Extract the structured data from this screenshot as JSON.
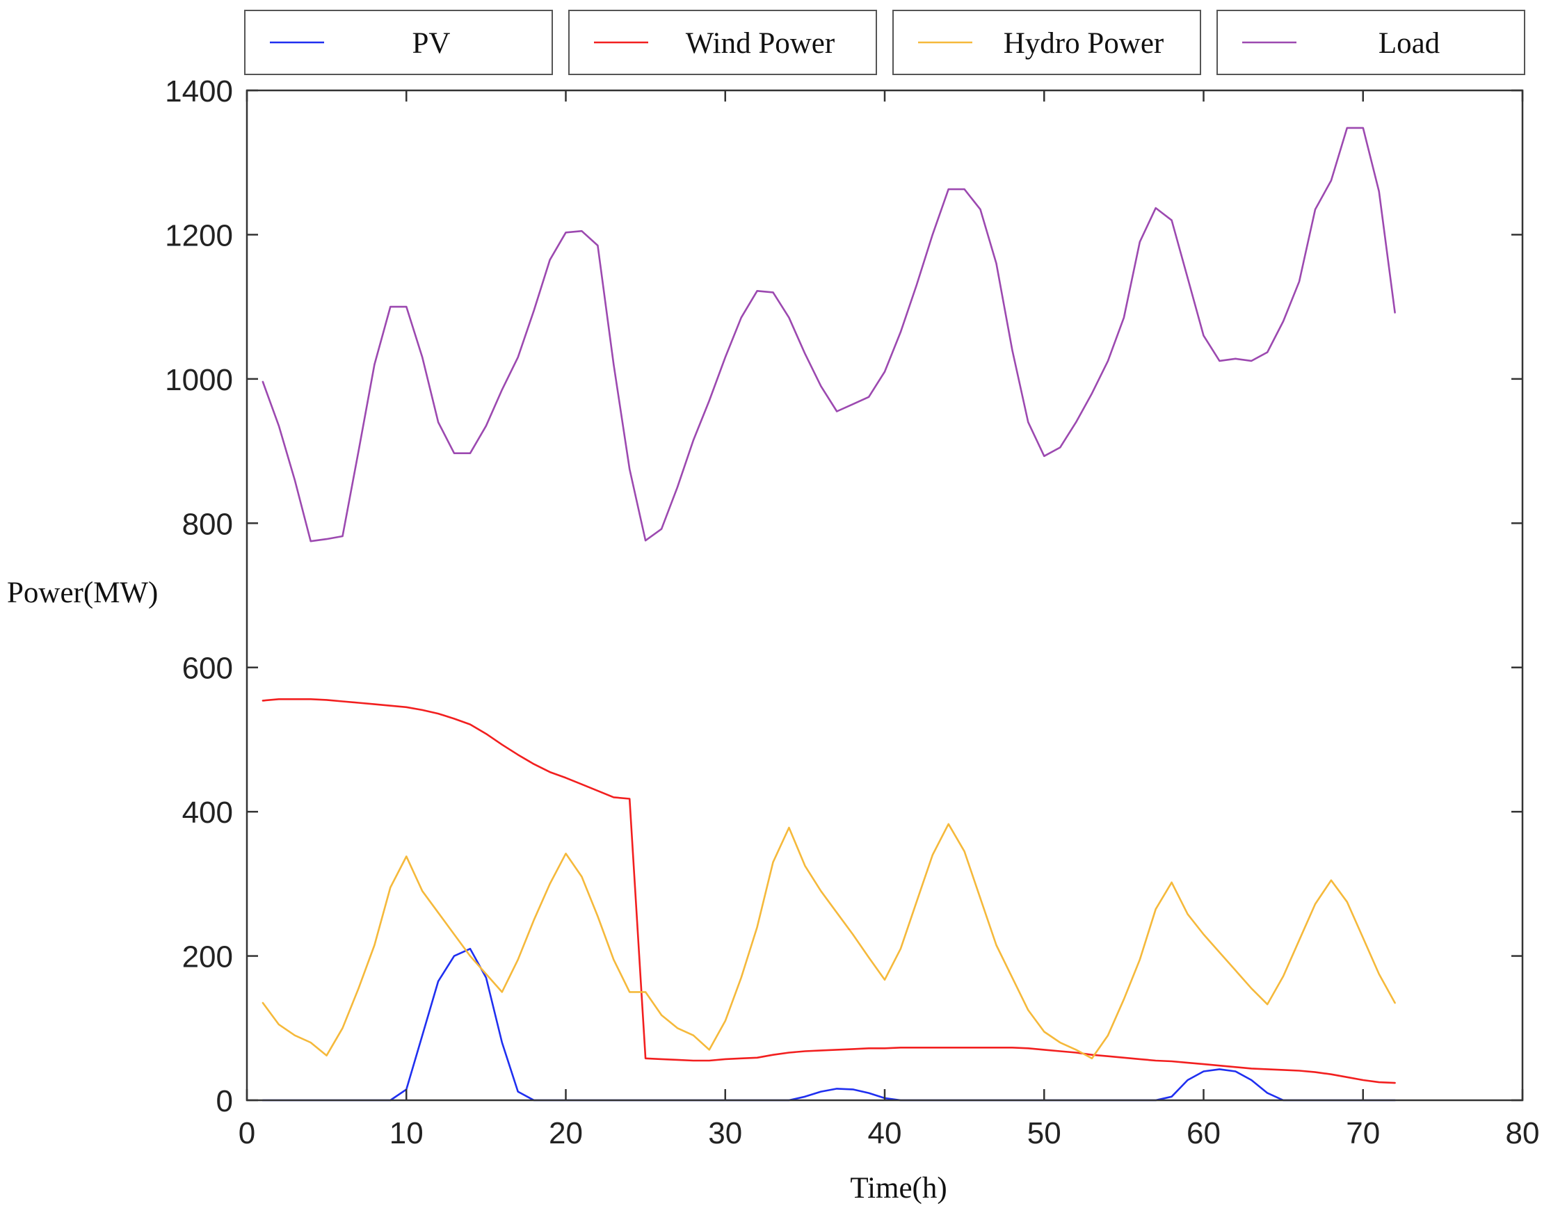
{
  "chart_data": {
    "type": "line",
    "xlabel": "Time(h)",
    "ylabel": "Power(MW)",
    "xlim": [
      0,
      80
    ],
    "ylim": [
      0,
      1400
    ],
    "xticks": [
      0,
      10,
      20,
      30,
      40,
      50,
      60,
      70,
      80
    ],
    "yticks": [
      0,
      200,
      400,
      600,
      800,
      1000,
      1200,
      1400
    ],
    "legend_position": "top",
    "grid": false,
    "x": [
      1,
      2,
      3,
      4,
      5,
      6,
      7,
      8,
      9,
      10,
      11,
      12,
      13,
      14,
      15,
      16,
      17,
      18,
      19,
      20,
      21,
      22,
      23,
      24,
      25,
      26,
      27,
      28,
      29,
      30,
      31,
      32,
      33,
      34,
      35,
      36,
      37,
      38,
      39,
      40,
      41,
      42,
      43,
      44,
      45,
      46,
      47,
      48,
      49,
      50,
      51,
      52,
      53,
      54,
      55,
      56,
      57,
      58,
      59,
      60,
      61,
      62,
      63,
      64,
      65,
      66,
      67,
      68,
      69,
      70,
      71,
      72
    ],
    "series": [
      {
        "name": "PV",
        "color": "#1f2ff0",
        "values": [
          0,
          0,
          0,
          0,
          0,
          0,
          0,
          0,
          0,
          15,
          90,
          165,
          200,
          210,
          170,
          80,
          12,
          0,
          0,
          0,
          0,
          0,
          0,
          0,
          0,
          0,
          0,
          0,
          0,
          0,
          0,
          0,
          0,
          0,
          5,
          12,
          16,
          15,
          10,
          3,
          0,
          0,
          0,
          0,
          0,
          0,
          0,
          0,
          0,
          0,
          0,
          0,
          0,
          0,
          0,
          0,
          0,
          5,
          28,
          40,
          43,
          40,
          28,
          10,
          0,
          0,
          0,
          0,
          0,
          0,
          0,
          0
        ]
      },
      {
        "name": "Wind Power",
        "color": "#f21f1f",
        "values": [
          554,
          556,
          556,
          556,
          555,
          553,
          551,
          549,
          547,
          545,
          541,
          536,
          529,
          521,
          508,
          493,
          479,
          466,
          455,
          447,
          438,
          429,
          420,
          418,
          58,
          57,
          56,
          55,
          55,
          57,
          58,
          59,
          63,
          66,
          68,
          69,
          70,
          71,
          72,
          72,
          73,
          73,
          73,
          73,
          73,
          73,
          73,
          73,
          72,
          70,
          68,
          66,
          63,
          61,
          59,
          57,
          55,
          54,
          52,
          50,
          48,
          46,
          44,
          43,
          42,
          41,
          39,
          36,
          32,
          28,
          25,
          24
        ]
      },
      {
        "name": "Hydro Power",
        "color": "#f5b93b",
        "values": [
          135,
          105,
          90,
          80,
          62,
          100,
          155,
          215,
          295,
          338,
          290,
          260,
          230,
          200,
          175,
          150,
          195,
          250,
          300,
          342,
          310,
          255,
          195,
          150,
          150,
          118,
          100,
          90,
          70,
          110,
          170,
          240,
          330,
          378,
          325,
          290,
          260,
          230,
          198,
          167,
          210,
          275,
          340,
          383,
          345,
          280,
          215,
          170,
          125,
          95,
          80,
          70,
          58,
          90,
          140,
          195,
          265,
          302,
          258,
          230,
          205,
          180,
          155,
          133,
          172,
          222,
          272,
          305,
          275,
          225,
          175,
          135
        ]
      },
      {
        "name": "Load",
        "color": "#9c49b0",
        "values": [
          996,
          935,
          860,
          775,
          778,
          782,
          900,
          1020,
          1100,
          1100,
          1030,
          940,
          897,
          897,
          935,
          985,
          1030,
          1095,
          1165,
          1203,
          1205,
          1185,
          1020,
          875,
          776,
          792,
          850,
          915,
          970,
          1030,
          1085,
          1122,
          1120,
          1085,
          1035,
          990,
          955,
          965,
          975,
          1010,
          1065,
          1130,
          1200,
          1263,
          1263,
          1235,
          1160,
          1040,
          940,
          893,
          905,
          940,
          980,
          1025,
          1085,
          1190,
          1237,
          1220,
          1140,
          1060,
          1025,
          1028,
          1025,
          1037,
          1080,
          1135,
          1235,
          1275,
          1348,
          1348,
          1260,
          1092
        ]
      }
    ]
  }
}
